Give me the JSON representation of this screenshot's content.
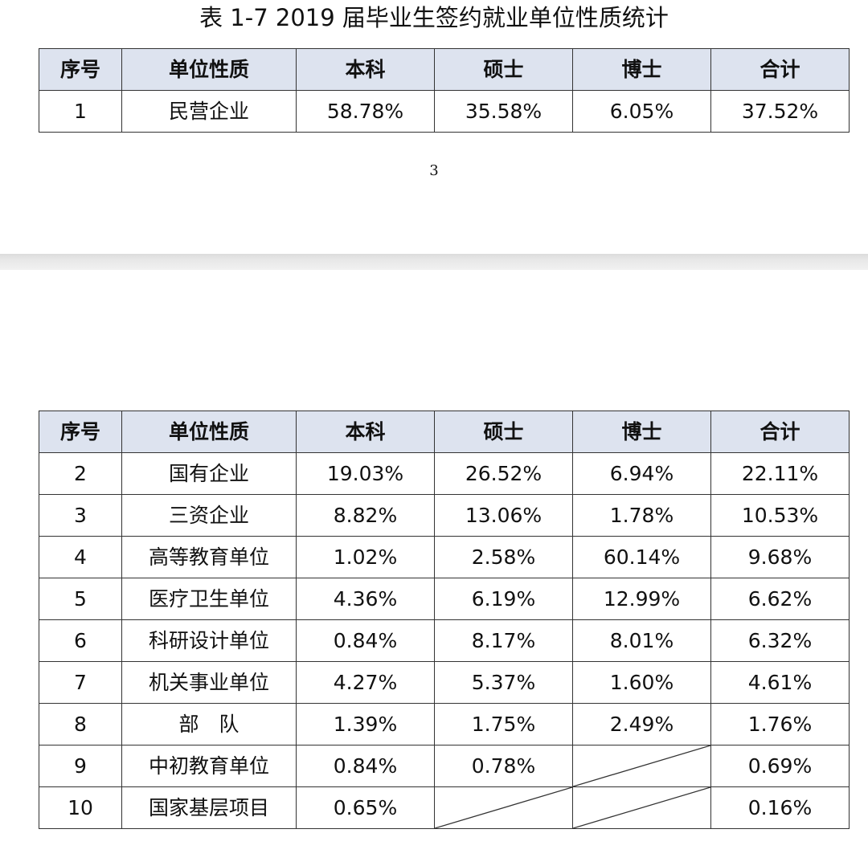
{
  "caption": "表 1-7    2019 届毕业生签约就业单位性质统计",
  "page_number": "3",
  "headers": [
    "序号",
    "单位性质",
    "本科",
    "硕士",
    "博士",
    "合计"
  ],
  "rows_top": [
    [
      "1",
      "民营企业",
      "58.78%",
      "35.58%",
      "6.05%",
      "37.52%"
    ]
  ],
  "rows_bottom": [
    [
      "2",
      "国有企业",
      "19.03%",
      "26.52%",
      "6.94%",
      "22.11%"
    ],
    [
      "3",
      "三资企业",
      "8.82%",
      "13.06%",
      "1.78%",
      "10.53%"
    ],
    [
      "4",
      "高等教育单位",
      "1.02%",
      "2.58%",
      "60.14%",
      "9.68%"
    ],
    [
      "5",
      "医疗卫生单位",
      "4.36%",
      "6.19%",
      "12.99%",
      "6.62%"
    ],
    [
      "6",
      "科研设计单位",
      "0.84%",
      "8.17%",
      "8.01%",
      "6.32%"
    ],
    [
      "7",
      "机关事业单位",
      "4.27%",
      "5.37%",
      "1.60%",
      "4.61%"
    ],
    [
      "8",
      "部　队",
      "1.39%",
      "1.75%",
      "2.49%",
      "1.76%"
    ],
    [
      "9",
      "中初教育单位",
      "0.84%",
      "0.78%",
      null,
      "0.69%"
    ],
    [
      "10",
      "国家基层项目",
      "0.65%",
      null,
      null,
      "0.16%"
    ]
  ],
  "colors": {
    "header_bg": "#dde3ef",
    "border": "#333333",
    "page_gap": "#e2e2e2"
  }
}
